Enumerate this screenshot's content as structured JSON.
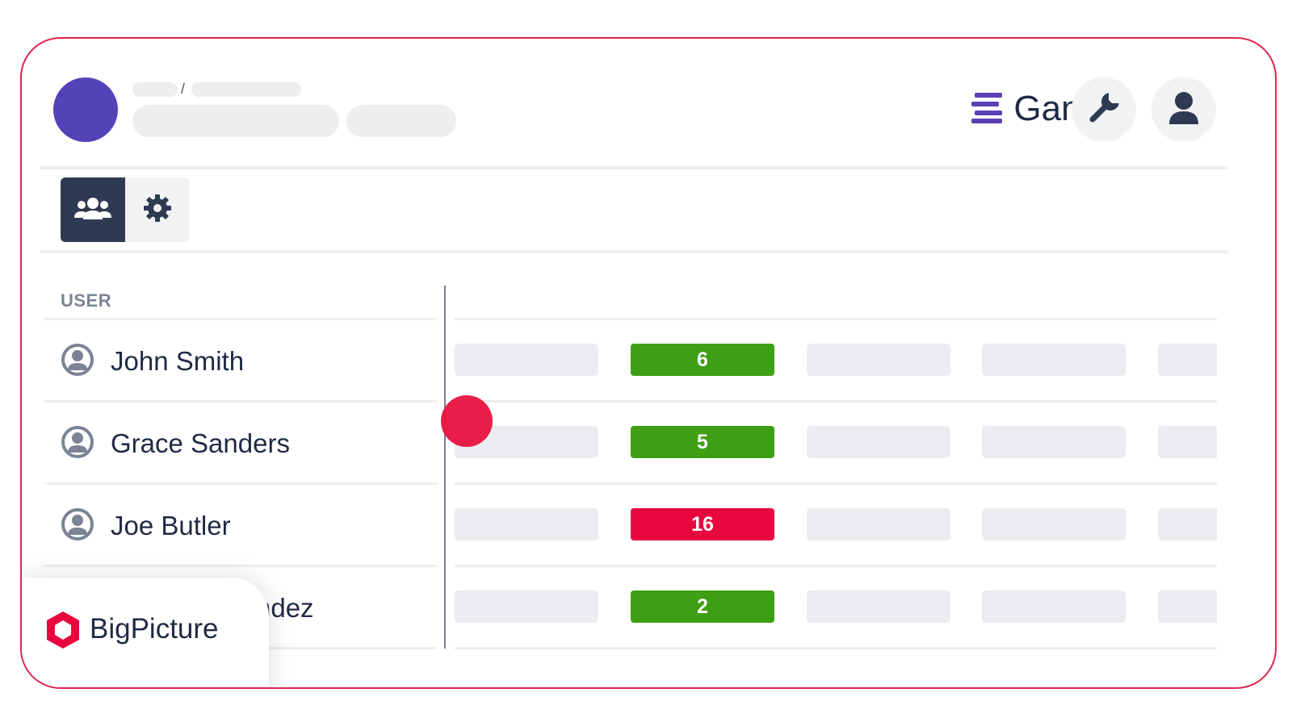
{
  "header": {
    "breadcrumb_separator": "/",
    "brand_name": "Gantt",
    "colors": {
      "avatar": "#5343b8",
      "accent": "#e0234e",
      "brand_icon": "#5b3fb5"
    }
  },
  "tabs": [
    {
      "name": "users",
      "icon": "users-icon",
      "active": true
    },
    {
      "name": "settings",
      "icon": "gear-icon",
      "active": false
    }
  ],
  "table": {
    "column_header": "USER",
    "rows": [
      {
        "name": "John Smith",
        "value": "6",
        "status": "ok"
      },
      {
        "name": "Grace Sanders",
        "value": "5",
        "status": "ok"
      },
      {
        "name": "Joe Butler",
        "value": "16",
        "status": "over"
      },
      {
        "name": "ndez",
        "value": "2",
        "status": "ok"
      }
    ],
    "status_colors": {
      "ok": "#3f9f14",
      "over": "#e8083f"
    }
  },
  "footer_badge": {
    "text": "BigPicture",
    "icon": "bigpicture-logo-icon"
  }
}
